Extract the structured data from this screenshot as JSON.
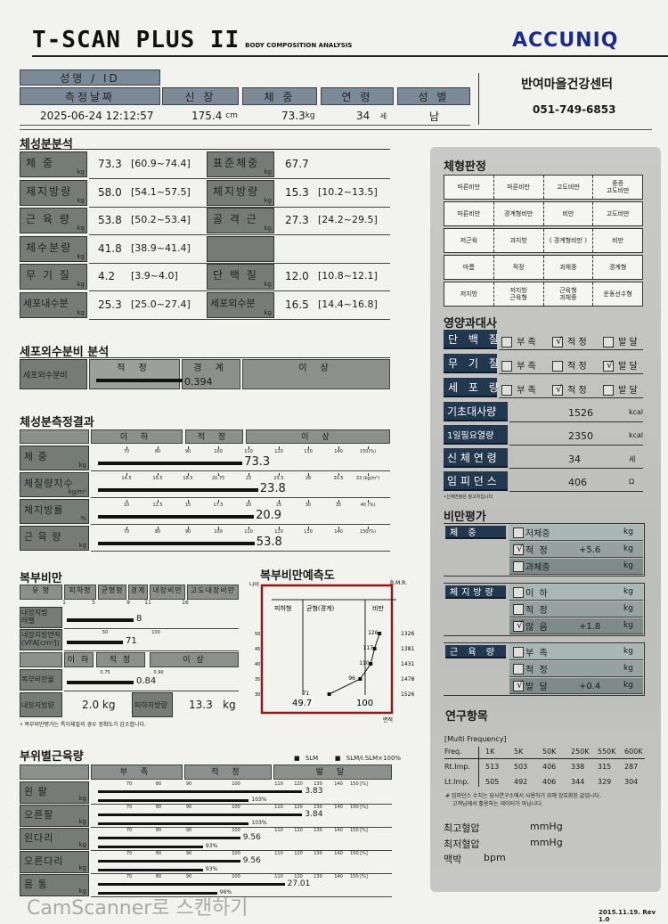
{
  "header": {
    "logo": "T-SCAN PLUS II",
    "logo_sub": "BODY COMPOSITION ANALYSIS",
    "brand": "ACCUNIQ",
    "center_name": "반여마을건강센터",
    "center_phone": "051-749-6853"
  },
  "info": {
    "name_label": "성명 / ID",
    "date_label": "측정날짜",
    "height_label": "신  장",
    "weight_label": "체  중",
    "age_label": "연  령",
    "sex_label": "성  별",
    "date": "2025-06-24 12:12:57",
    "height": "175.4",
    "height_unit": "cm",
    "weight": "73.3",
    "weight_unit": "kg",
    "age": "34",
    "age_unit": "세",
    "sex": "남"
  },
  "composition": {
    "title": "체성분분석",
    "rows": [
      [
        {
          "label": "체     중",
          "unit": "kg",
          "value": "73.3",
          "range": "[60.9~74.4]"
        },
        {
          "label": "표준체중",
          "unit": "kg",
          "value": "67.7",
          "range": ""
        }
      ],
      [
        {
          "label": "제지방량",
          "unit": "kg",
          "value": "58.0",
          "range": "[54.1~57.5]"
        },
        {
          "label": "체지방량",
          "unit": "kg",
          "value": "15.3",
          "range": "[10.2~13.5]"
        }
      ],
      [
        {
          "label": "근 육 량",
          "unit": "kg",
          "value": "53.8",
          "range": "[50.2~53.4]"
        },
        {
          "label": "골 격 근",
          "unit": "kg",
          "value": "27.3",
          "range": "[24.2~29.5]"
        }
      ],
      [
        {
          "label": "체수분량",
          "unit": "kg",
          "value": "41.8",
          "range": "[38.9~41.4]"
        },
        {
          "label": "",
          "unit": "",
          "value": "",
          "range": ""
        }
      ],
      [
        {
          "label": "무 기 질",
          "unit": "kg",
          "value": "4.2",
          "range": "[3.9~4.0]"
        },
        {
          "label": "단 백 질",
          "unit": "kg",
          "value": "12.0",
          "range": "[10.8~12.1]"
        }
      ],
      [
        {
          "label": "세포내수분",
          "unit": "kg",
          "value": "25.3",
          "range": "[25.0~27.4]"
        },
        {
          "label": "세포외수분",
          "unit": "kg",
          "value": "16.5",
          "range": "[14.4~16.8]"
        }
      ]
    ]
  },
  "ecw": {
    "title": "세포외수분비 분석",
    "label": "세포외수분비",
    "zones": [
      "적 정",
      "경 계",
      "이 상"
    ],
    "value": "0.394"
  },
  "result": {
    "title": "체성분측정결과",
    "zones": [
      "이  하",
      "적  정",
      "이  상"
    ],
    "rows": [
      {
        "label": "체    중",
        "unit": "kg",
        "value": "73.3",
        "level_pct": 108,
        "ticks": [
          "70",
          "80",
          "90",
          "100",
          "110",
          "120",
          "130",
          "140",
          "150(%)"
        ]
      },
      {
        "label": "체질량지수",
        "unit": "kg/m²",
        "value": "23.8",
        "ticks": [
          "14.5",
          "16.5",
          "18.5",
          "20.75",
          "23",
          "25.5",
          "28",
          "30.5",
          "33 (kg/m²)"
        ],
        "tick_values": [
          14.5,
          16.5,
          18.5,
          20.75,
          23,
          25.5,
          28,
          30.5,
          33
        ]
      },
      {
        "label": "체지방률",
        "unit": "%",
        "value": "20.9",
        "ticks": [
          "10",
          "12.5",
          "15",
          "17.5",
          "20",
          "25",
          "30",
          "35",
          "40 (%)"
        ],
        "tick_values": [
          10,
          12.5,
          15,
          17.5,
          20,
          25,
          30,
          35,
          40
        ]
      },
      {
        "label": "근 육 량",
        "unit": "kg",
        "value": "53.8",
        "level_pct": 112,
        "ticks": [
          "70",
          "80",
          "90",
          "100",
          "110",
          "120",
          "130",
          "140",
          "150(%)"
        ]
      }
    ]
  },
  "abdominal": {
    "title": "복부비만",
    "type_label": "유 형",
    "types": [
      "피하형",
      "균형형",
      "경계",
      "내장비만",
      "고도내장비만"
    ],
    "type_ticks": [
      "1",
      "5",
      "9",
      "11",
      "16"
    ],
    "vfl": {
      "label": "내장지방\n레벨",
      "value": "8"
    },
    "vfa": {
      "label": "내장지방면적\n(VFA[cm²])",
      "value": "71",
      "ticks": [
        "50",
        "100"
      ]
    },
    "zones": [
      "이 하",
      "적 정",
      "이 상"
    ],
    "whr": {
      "label": "복부비만율",
      "value": "0.84",
      "ticks": [
        "0.75",
        "0.90"
      ]
    },
    "visceral_fat_label": "내장지방량",
    "visceral_fat": "2.0 kg",
    "subcutaneous_label": "피하지방량",
    "subcutaneous": "13.3",
    "subcutaneous_unit": "kg",
    "note": "• 복부비만평가는 특이체질의 경우 정확도가 감소합니다."
  },
  "prediction": {
    "title": "복부비만예측도",
    "age_axis": "나이",
    "bmr_axis": "B.M.R.",
    "area_axis": "면적",
    "columns": [
      "피하형",
      "균형(경계)",
      "비만"
    ],
    "thresholds": [
      "49.7",
      "100"
    ],
    "points": [
      {
        "age": "50",
        "area": "126",
        "bmr": "1326"
      },
      {
        "age": "45",
        "area": "117",
        "bmr": "1381"
      },
      {
        "age": "40",
        "area": "110",
        "bmr": "1431"
      },
      {
        "age": "35",
        "area": "96",
        "bmr": "1478"
      },
      {
        "age": "30",
        "area": "71",
        "bmr": "1526"
      }
    ]
  },
  "segmental": {
    "title": "부위별근육량",
    "legend": [
      "■ SLM",
      "■ SLM/I.SLM×100%"
    ],
    "zones": [
      "부  족",
      "적  정",
      "발  달"
    ],
    "ticks": [
      "70",
      "80",
      "90",
      "100",
      "110",
      "120",
      "130",
      "140",
      "150 [%]"
    ],
    "rows": [
      {
        "label": "왼   팔",
        "unit": "kg",
        "slm": "3.83",
        "slm_level_pct": 122,
        "ratio": "103%",
        "ratio_pct": 103
      },
      {
        "label": "오른팔",
        "unit": "kg",
        "slm": "3.84",
        "slm_level_pct": 122,
        "ratio": "103%",
        "ratio_pct": 103
      },
      {
        "label": "왼다리",
        "unit": "kg",
        "slm": "9.56",
        "slm_level_pct": 101,
        "ratio": "93%",
        "ratio_pct": 93
      },
      {
        "label": "오른다리",
        "unit": "kg",
        "slm": "9.56",
        "slm_level_pct": 101,
        "ratio": "93%",
        "ratio_pct": 93
      },
      {
        "label": "몸   통",
        "unit": "kg",
        "slm": "27.01",
        "slm_level_pct": 113,
        "ratio": "96%",
        "ratio_pct": 96
      }
    ]
  },
  "bodytype": {
    "title": "체형판정",
    "grid": [
      [
        "마른비만",
        "마른비만",
        "고도비만",
        "중증\n고도비만"
      ],
      [
        "마른비만",
        "경계형비만",
        "비만",
        "고도비만"
      ],
      [
        "저근육",
        "과지방",
        "경계형비만",
        "비만"
      ],
      [
        "마름",
        "적정",
        "과체중",
        "경계형"
      ],
      [
        "저지방",
        "저지방\n근육형",
        "근육형\n과체중",
        "운동선수형"
      ]
    ],
    "selected": [
      2,
      2
    ]
  },
  "nutrition": {
    "title": "영양과대사",
    "options": [
      "부 족",
      "적 정",
      "발 달"
    ],
    "rows": [
      {
        "label": "단 백 질",
        "checked": 1
      },
      {
        "label": "무 기 질",
        "checked": 2
      },
      {
        "label": "세 포 량",
        "checked": 1
      }
    ],
    "metrics": [
      {
        "label": "기초대사량",
        "value": "1526",
        "unit": "kcal"
      },
      {
        "label": "1일필요열량",
        "value": "2350",
        "unit": "kcal"
      },
      {
        "label": "신 체 연 령",
        "value": "34",
        "unit": "세"
      },
      {
        "label": "임 피 던 스",
        "value": "406",
        "unit": "Ω"
      }
    ],
    "note": "•신체연령은 참고치입니다."
  },
  "obesity": {
    "title": "비만평가",
    "groups": [
      {
        "label": "체     중",
        "options": [
          {
            "text": "저체중",
            "value": "",
            "unit": "kg"
          },
          {
            "text": "적  정",
            "value": "+5.6",
            "unit": "kg",
            "checked": true
          },
          {
            "text": "과체중",
            "value": "",
            "unit": "kg"
          }
        ]
      },
      {
        "label": "체지방량",
        "options": [
          {
            "text": "이  하",
            "value": "",
            "unit": "kg"
          },
          {
            "text": "적  정",
            "value": "",
            "unit": "kg"
          },
          {
            "text": "많  음",
            "value": "+1.8",
            "unit": "kg",
            "checked": true
          }
        ]
      },
      {
        "label": "근 육 량",
        "options": [
          {
            "text": "부  족",
            "value": "",
            "unit": "kg"
          },
          {
            "text": "적  정",
            "value": "",
            "unit": "kg"
          },
          {
            "text": "발  달",
            "value": "+0.4",
            "unit": "kg",
            "checked": true
          }
        ]
      }
    ]
  },
  "research": {
    "title": "연구항목",
    "mf_label": "[Multi Frequency]",
    "freq": [
      "Freq.",
      "1K",
      "5K",
      "50K",
      "250K",
      "550K",
      "600K"
    ],
    "rt": [
      "Rt.Imp.",
      "513",
      "503",
      "406",
      "338",
      "315",
      "287"
    ],
    "lt": [
      "Lt.Imp.",
      "505",
      "492",
      "406",
      "344",
      "329",
      "304"
    ],
    "note1": "# 임피던스 수치는 당사연구소에서 사용하기 위해 암호화된 값입니다.",
    "note2": "고객님께서 활용하는 데이터가 아닙니다.",
    "sbp_label": "최고혈압",
    "sbp_unit": "mmHg",
    "dbp_label": "최저혈압",
    "dbp_unit": "mmHg",
    "pulse_label": "맥박",
    "pulse_unit": "bpm"
  },
  "footer": {
    "revision": "2015.11.19. Rev 1.0"
  },
  "watermark": "CamScanner로 스캔하기",
  "colors": {
    "brand": "#1b2b8c",
    "label_gray": "#777b78",
    "navy": "#22384f",
    "frame_red": "#8b1a1a"
  }
}
